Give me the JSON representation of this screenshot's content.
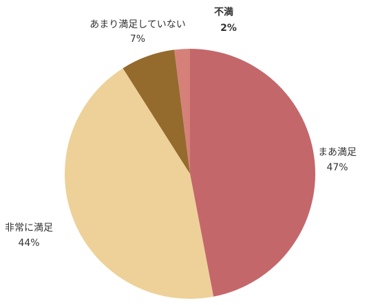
{
  "chart_data": {
    "type": "pie",
    "categories": [
      "まあ満足",
      "非常に満足",
      "あまり満足していない",
      "不満"
    ],
    "values": [
      47,
      44,
      7,
      2
    ],
    "value_labels": [
      "47%",
      "44%",
      "7%",
      "2%"
    ],
    "colors": [
      "#c4676b",
      "#eed199",
      "#946b2d",
      "#d5817a"
    ]
  }
}
